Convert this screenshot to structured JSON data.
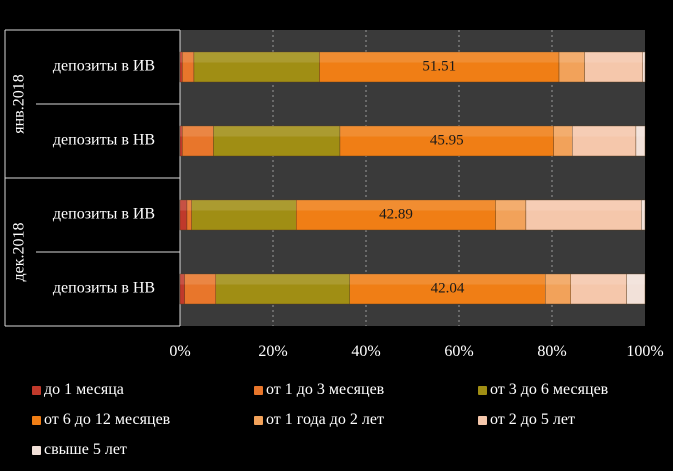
{
  "chart_data": {
    "type": "bar",
    "orientation": "horizontal",
    "stacked": "percent",
    "groups": [
      {
        "label": "янв.2018",
        "categories": [
          "депозиты в ИВ",
          "депозиты в НВ"
        ]
      },
      {
        "label": "дек.2018",
        "categories": [
          "депозиты в ИВ",
          "депозиты в НВ"
        ]
      }
    ],
    "rows": [
      "янв.2018 депозиты в ИВ",
      "янв.2018 депозиты в НВ",
      "дек.2018 депозиты в ИВ",
      "дек.2018 депозиты в НВ"
    ],
    "series": [
      {
        "name": "до 1 месяца",
        "color": "#c0392b",
        "values": [
          0.5,
          0.5,
          1.5,
          1.0
        ]
      },
      {
        "name": "от 1 до 3 месяцев",
        "color": "#e8762b",
        "values": [
          2.5,
          6.7,
          1.0,
          6.7
        ]
      },
      {
        "name": "от 3 до 6 месяцев",
        "color": "#a08e14",
        "values": [
          27.0,
          27.2,
          22.5,
          28.8
        ]
      },
      {
        "name": "от 6 до 12 месяцев",
        "color": "#f07e15",
        "values": [
          51.51,
          45.95,
          42.89,
          42.04
        ]
      },
      {
        "name": "от 1 года до 2 лет",
        "color": "#f2a25a",
        "values": [
          5.5,
          4.0,
          6.5,
          5.5
        ]
      },
      {
        "name": "от 2 до 5 лет",
        "color": "#f5c7ab",
        "values": [
          12.5,
          13.7,
          24.8,
          12.0
        ]
      },
      {
        "name": "свыше 5 лет",
        "color": "#f2e1d9",
        "values": [
          0.5,
          1.95,
          0.81,
          3.96
        ]
      }
    ],
    "data_labels": [
      "51.51",
      "45.95",
      "42.89",
      "42.04"
    ],
    "x_ticks": [
      "0%",
      "20%",
      "40%",
      "60%",
      "80%",
      "100%"
    ],
    "xlim": [
      0,
      100
    ],
    "grid": true,
    "legend_position": "bottom"
  },
  "colors": {
    "background": "#000000",
    "plot_area": "#3a3a3a",
    "grid": "#9a9a9a"
  }
}
